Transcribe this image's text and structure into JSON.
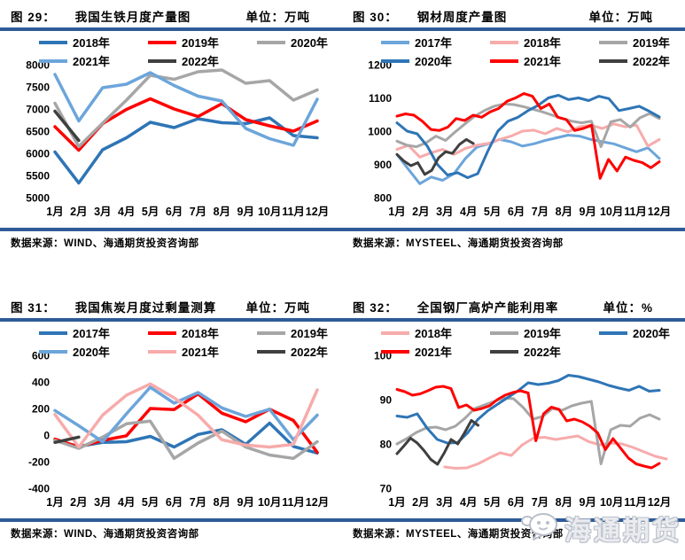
{
  "page": {
    "background": "#FFFFFF",
    "divider_color": "#2E5B97"
  },
  "watermark": {
    "text": "海通期货",
    "icon": "chat-bubble-face-icon",
    "color": "#C9CDD6"
  },
  "chart_data": [
    {
      "id": "fig-29",
      "fig_label": "图 29：",
      "title": "我国生铁月度产量图",
      "unit_label": "单位：万吨",
      "source": "数据来源：WIND、海通期货投资咨询部",
      "type": "line",
      "grid": false,
      "legend_position": "top-inside",
      "stroke_width": 3.5,
      "x_labels": [
        "1月",
        "2月",
        "3月",
        "4月",
        "5月",
        "6月",
        "7月",
        "8月",
        "9月",
        "10月",
        "11月",
        "12月"
      ],
      "ylim": [
        5000,
        8000
      ],
      "yticks": [
        8000,
        7500,
        7000,
        6500,
        6000,
        5500,
        5000
      ],
      "legend_rows": [
        [
          {
            "label": "2018年",
            "color": "#2E75B6"
          },
          {
            "label": "2019年",
            "color": "#FF0000"
          },
          {
            "label": "2020年",
            "color": "#A6A6A6"
          }
        ],
        [
          {
            "label": "2021年",
            "color": "#6CA5DA"
          },
          {
            "label": "2022年",
            "color": "#3F3F3F"
          }
        ]
      ],
      "series": [
        {
          "name": "2018年",
          "color": "#2E75B6",
          "values": [
            6030,
            5330,
            6080,
            6350,
            6700,
            6580,
            6780,
            6690,
            6670,
            6800,
            6400,
            6350
          ]
        },
        {
          "name": "2019年",
          "color": "#FF0000",
          "values": [
            6600,
            6070,
            6670,
            6990,
            7230,
            7000,
            6830,
            7120,
            6760,
            6620,
            6500,
            6730
          ]
        },
        {
          "name": "2020年",
          "color": "#A6A6A6",
          "values": [
            7130,
            6150,
            6680,
            7200,
            7760,
            7670,
            7840,
            7880,
            7580,
            7640,
            7200,
            7430
          ]
        },
        {
          "name": "2021年",
          "color": "#6CA5DA",
          "values": [
            7780,
            6730,
            7480,
            7560,
            7820,
            7530,
            7290,
            7180,
            6560,
            6330,
            6180,
            7220
          ]
        },
        {
          "name": "2022年",
          "color": "#3F3F3F",
          "x_start": 1,
          "x_end": 2,
          "values": [
            6950,
            6290
          ]
        }
      ]
    },
    {
      "id": "fig-30",
      "fig_label": "图 30：",
      "title": "钢材周度产量图",
      "unit_label": "单位：万吨",
      "source": "数据来源：MYSTEEL、海通期货投资咨询部",
      "type": "line",
      "grid": false,
      "legend_position": "top-inside",
      "stroke_width": 3,
      "x_labels": [
        "1月",
        "2月",
        "3月",
        "4月",
        "5月",
        "6月",
        "7月",
        "8月",
        "9月",
        "10月",
        "11月",
        "12月"
      ],
      "ylim": [
        800,
        1200
      ],
      "yticks": [
        1200,
        1100,
        1000,
        900,
        800
      ],
      "legend_rows": [
        [
          {
            "label": "2017年",
            "color": "#6CA5DA"
          },
          {
            "label": "2018年",
            "color": "#F7ABAB"
          },
          {
            "label": "2019年",
            "color": "#A6A6A6"
          }
        ],
        [
          {
            "label": "2020年",
            "color": "#2E75B6"
          },
          {
            "label": "2021年",
            "color": "#FF0000"
          },
          {
            "label": "2022年",
            "color": "#3F3F3F"
          }
        ]
      ],
      "series": [
        {
          "name": "2017年",
          "color": "#6CA5DA",
          "values": [
            930,
            885,
            842,
            862,
            852,
            872,
            918,
            952,
            962,
            975,
            968,
            955,
            962,
            972,
            980,
            988,
            985,
            975,
            968,
            962,
            950,
            938,
            950,
            918
          ]
        },
        {
          "name": "2018年",
          "color": "#F7ABAB",
          "values": [
            945,
            957,
            922,
            935,
            945,
            930,
            948,
            958,
            963,
            975,
            985,
            1000,
            1003,
            992,
            1008,
            998,
            1013,
            1018,
            1008,
            1022,
            1013,
            1018,
            955,
            975
          ]
        },
        {
          "name": "2019年",
          "color": "#A6A6A6",
          "values": [
            970,
            958,
            953,
            965,
            985,
            972,
            998,
            1022,
            1045,
            1062,
            1075,
            1082,
            1080,
            1074,
            1066,
            1058,
            1048,
            1038,
            1030,
            1025,
            1030,
            953,
            1028,
            1035,
            1012,
            1040,
            1053,
            1038
          ]
        },
        {
          "name": "2020年",
          "color": "#2E75B6",
          "values": [
            1025,
            1000,
            992,
            955,
            900,
            868,
            875,
            860,
            872,
            940,
            1000,
            1030,
            1042,
            1062,
            1078,
            1100,
            1108,
            1095,
            1100,
            1092,
            1105,
            1098,
            1062,
            1068,
            1075,
            1060,
            1043
          ]
        },
        {
          "name": "2021年",
          "color": "#FF0000",
          "values": [
            1045,
            1052,
            1048,
            1030,
            1005,
            1002,
            1012,
            1038,
            1032,
            1048,
            1042,
            1058,
            1068,
            1090,
            1100,
            1113,
            1105,
            1068,
            1082,
            1042,
            1035,
            1002,
            1008,
            1018,
            858,
            915,
            880,
            922,
            912,
            905,
            890,
            908
          ]
        },
        {
          "name": "2022年",
          "color": "#3F3F3F",
          "x_start": 1,
          "x_end": 4.2,
          "values": [
            930,
            910,
            896,
            905,
            870,
            882,
            920,
            938,
            933,
            960,
            975,
            963
          ]
        }
      ]
    },
    {
      "id": "fig-31",
      "fig_label": "图 31：",
      "title": "我国焦炭月度过剩量测算",
      "unit_label": "单位：万吨",
      "source": "数据来源：WIND、海通期货投资咨询部",
      "type": "line",
      "grid": false,
      "legend_position": "top-inside",
      "stroke_width": 3.5,
      "x_labels": [
        "1月",
        "2月",
        "3月",
        "4月",
        "5月",
        "6月",
        "7月",
        "8月",
        "9月",
        "10月",
        "11月",
        "12月"
      ],
      "ylim": [
        -400,
        600
      ],
      "yticks": [
        600,
        400,
        200,
        0,
        -200,
        -400
      ],
      "legend_rows": [
        [
          {
            "label": "2017年",
            "color": "#2E75B6"
          },
          {
            "label": "2018年",
            "color": "#FF0000"
          },
          {
            "label": "2019年",
            "color": "#A6A6A6"
          }
        ],
        [
          {
            "label": "2020年",
            "color": "#6CA5DA"
          },
          {
            "label": "2021年",
            "color": "#F7ABAB"
          },
          {
            "label": "2022年",
            "color": "#3F3F3F"
          }
        ]
      ],
      "series": [
        {
          "name": "2017年",
          "color": "#2E75B6",
          "values": [
            -40,
            -85,
            -55,
            -50,
            -10,
            -90,
            5,
            40,
            -70,
            90,
            -85,
            -135
          ]
        },
        {
          "name": "2018年",
          "color": "#FF0000",
          "values": [
            -30,
            -90,
            -40,
            -5,
            200,
            192,
            310,
            165,
            100,
            195,
            110,
            -130
          ]
        },
        {
          "name": "2019年",
          "color": "#A6A6A6",
          "values": [
            -40,
            -100,
            -15,
            85,
            105,
            -175,
            -60,
            30,
            -90,
            -150,
            -175,
            -50
          ]
        },
        {
          "name": "2020年",
          "color": "#6CA5DA",
          "values": [
            185,
            70,
            -50,
            160,
            360,
            240,
            320,
            205,
            140,
            195,
            -35,
            150
          ]
        },
        {
          "name": "2021年",
          "color": "#F7ABAB",
          "values": [
            155,
            -90,
            150,
            300,
            385,
            280,
            150,
            -35,
            -75,
            -90,
            -70,
            340
          ]
        },
        {
          "name": "2022年",
          "color": "#3F3F3F",
          "x_start": 1,
          "x_end": 2,
          "values": [
            -55,
            -15
          ]
        }
      ]
    },
    {
      "id": "fig-32",
      "fig_label": "图 32：",
      "title": "全国钢厂高炉产能利用率",
      "unit_label": "单位：%",
      "source": "数据来源：MYSTEEL、海通期货投资咨询部",
      "type": "line",
      "grid": false,
      "legend_position": "top-inside",
      "stroke_width": 3,
      "x_labels": [
        "1月",
        "2月",
        "3月",
        "4月",
        "5月",
        "6月",
        "7月",
        "8月",
        "9月",
        "10月",
        "11月",
        "12月"
      ],
      "ylim": [
        70,
        100
      ],
      "yticks": [
        100,
        90,
        80,
        70
      ],
      "legend_rows": [
        [
          {
            "label": "2018年",
            "color": "#F7ABAB"
          },
          {
            "label": "2019年",
            "color": "#A6A6A6"
          },
          {
            "label": "2020年",
            "color": "#2E75B6"
          }
        ],
        [
          {
            "label": "2021年",
            "color": "#FF0000"
          },
          {
            "label": "2022年",
            "color": "#3F3F3F"
          }
        ]
      ],
      "series": [
        {
          "name": "2018年",
          "color": "#F7ABAB",
          "x_start": 3,
          "x_end": 12.3,
          "values": [
            74.8,
            74.5,
            74.6,
            75.5,
            76.8,
            78.0,
            77.4,
            79.8,
            81.3,
            81.5,
            81.0,
            81.4,
            81.8,
            80.5,
            79.8,
            80.2,
            80.0,
            79.2,
            78.2,
            77.2,
            76.6
          ]
        },
        {
          "name": "2019年",
          "color": "#A6A6A6",
          "values": [
            80.0,
            81.2,
            82.6,
            83.6,
            83.8,
            83.2,
            84.0,
            85.8,
            88.0,
            88.8,
            89.6,
            90.4,
            90.2,
            88.2,
            85.6,
            86.2,
            88.0,
            87.6,
            88.6,
            89.2,
            89.6,
            75.5,
            83.2,
            84.2,
            84.0,
            85.8,
            86.6,
            85.6
          ]
        },
        {
          "name": "2020年",
          "color": "#2E75B6",
          "values": [
            86.3,
            86.0,
            86.8,
            83.5,
            81.0,
            80.2,
            80.3,
            82.5,
            85.5,
            87.5,
            89.0,
            90.5,
            92.0,
            93.8,
            93.4,
            93.7,
            94.3,
            95.5,
            95.2,
            94.6,
            94.0,
            93.2,
            92.6,
            92.1,
            93.0,
            91.9,
            92.1
          ]
        },
        {
          "name": "2021年",
          "color": "#FF0000",
          "values": [
            92.3,
            91.8,
            91.0,
            91.3,
            92.0,
            92.8,
            93.0,
            92.5,
            88.2,
            88.8,
            87.6,
            88.0,
            88.6,
            90.0,
            91.0,
            91.6,
            92.0,
            91.5,
            80.7,
            86.8,
            88.3,
            87.8,
            85.2,
            85.6,
            85.0,
            84.0,
            82.5,
            78.7,
            81.2,
            79.0,
            76.8,
            75.5,
            75.0,
            74.6,
            75.6
          ]
        },
        {
          "name": "2022年",
          "color": "#3F3F3F",
          "x_start": 1,
          "x_end": 4.4,
          "values": [
            77.8,
            79.5,
            81.3,
            80.2,
            78.5,
            76.5,
            75.4,
            78.0,
            81.0,
            80.0,
            82.5,
            85.3,
            84.2
          ]
        }
      ]
    }
  ]
}
